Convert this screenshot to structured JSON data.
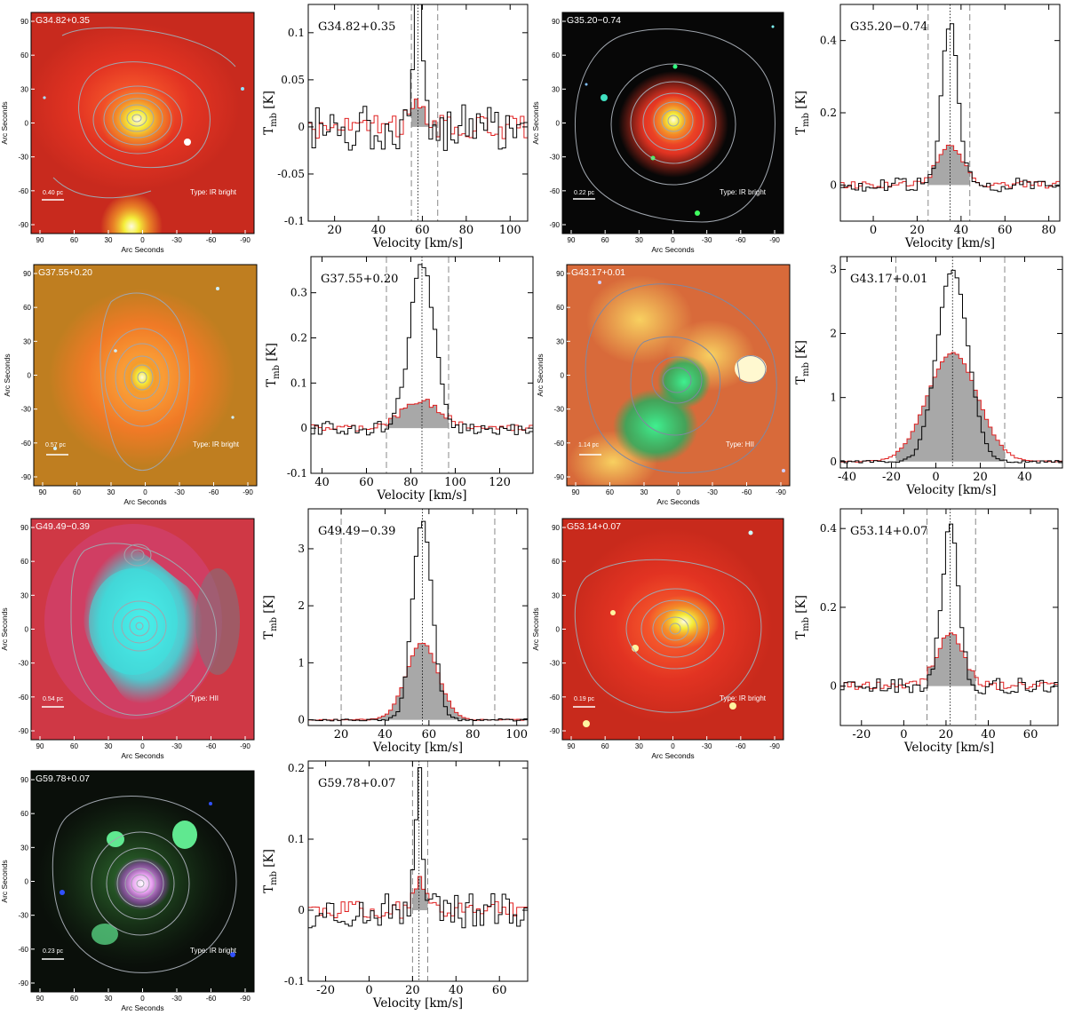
{
  "image_common": {
    "ylabel": "Arc Seconds",
    "xlabel": "Arc Seconds",
    "ticks": [
      "90",
      "60",
      "30",
      "0",
      "-30",
      "-60",
      "-90"
    ]
  },
  "spectrum_common": {
    "ylabel_main": "T",
    "ylabel_sub": "mb",
    "ylabel_unit": "[K]",
    "xlabel": "Velocity [km/s]"
  },
  "chart_data": [
    {
      "type": "image",
      "source": "G34.82+0.35",
      "scale_label": "0.40 pc",
      "type_label": "Type: IR bright",
      "colors": {
        "background": "#d63020",
        "core": "#f4ee3a",
        "contour": "#9aa0a8"
      }
    },
    {
      "type": "step-line",
      "source": "G34.82+0.35",
      "xlim": [
        8,
        108
      ],
      "ylim": [
        -0.1,
        0.13
      ],
      "xticks": [
        20,
        40,
        60,
        80,
        100
      ],
      "yticks": [
        -0.1,
        -0.05,
        0,
        0.05,
        0.1
      ],
      "center_velocity": 58,
      "window": [
        55,
        67
      ],
      "peak": 0.125,
      "width": 2.6,
      "red_peak": 0.022,
      "noise": 0.025,
      "colors": {
        "black_series": "#000000",
        "red_series": "#e02020",
        "fill": "#a8a8a8"
      }
    },
    {
      "type": "image",
      "source": "G35.20−0.74",
      "scale_label": "0.22 pc",
      "type_label": "Type: IR bright",
      "colors": {
        "background": "#070707",
        "core": "#f4ee3a",
        "contour": "#9aa0a8"
      }
    },
    {
      "type": "step-line",
      "source": "G35.20−0.74",
      "xlim": [
        -15,
        85
      ],
      "ylim": [
        -0.1,
        0.5
      ],
      "xticks": [
        0,
        20,
        40,
        60,
        80
      ],
      "yticks": [
        0,
        0.2,
        0.4
      ],
      "center_velocity": 35,
      "window": [
        25,
        44
      ],
      "peak": 0.45,
      "width": 3.6,
      "red_peak": 0.11,
      "noise": 0.02,
      "colors": {
        "black_series": "#000000",
        "red_series": "#e02020",
        "fill": "#a8a8a8"
      }
    },
    {
      "type": "image",
      "source": "G37.55+0.20",
      "scale_label": "0.57 pc",
      "type_label": "Type: IR bright",
      "colors": {
        "background": "#d96a20",
        "core": "#f4ee3a",
        "contour": "#9aa0a8"
      }
    },
    {
      "type": "step-line",
      "source": "G37.55+0.20",
      "xlim": [
        35,
        135
      ],
      "ylim": [
        -0.1,
        0.38
      ],
      "xticks": [
        40,
        60,
        80,
        100,
        120
      ],
      "yticks": [
        -0.1,
        0,
        0.1,
        0.2,
        0.3
      ],
      "center_velocity": 85,
      "window": [
        69,
        97
      ],
      "peak": 0.36,
      "width": 5.5,
      "red_peak": 0.06,
      "noise": 0.015,
      "colors": {
        "black_series": "#000000",
        "red_series": "#e02020",
        "fill": "#a8a8a8"
      }
    },
    {
      "type": "image",
      "source": "G43.17+0.01",
      "scale_label": "1.14 pc",
      "type_label": "Type: HII",
      "colors": {
        "background": "#dd7540",
        "core": "#28d070",
        "contour": "#9aa0a8"
      }
    },
    {
      "type": "step-line",
      "source": "G43.17+0.01",
      "xlim": [
        -43,
        57
      ],
      "ylim": [
        -0.1,
        3.2
      ],
      "xticks": [
        -40,
        -20,
        0,
        20,
        40
      ],
      "yticks": [
        0,
        1,
        2,
        3
      ],
      "center_velocity": 7.5,
      "window": [
        -18,
        31
      ],
      "peak": 3.0,
      "width": 7,
      "red_peak": 1.7,
      "noise": 0.02,
      "colors": {
        "black_series": "#000000",
        "red_series": "#e02020",
        "fill": "#a8a8a8"
      }
    },
    {
      "type": "image",
      "source": "G49.49−0.39",
      "scale_label": "0.54 pc",
      "type_label": "Type: HII",
      "colors": {
        "background": "#d23a48",
        "core": "#38ecea",
        "contour": "#9aa0a8"
      }
    },
    {
      "type": "step-line",
      "source": "G49.49−0.39",
      "xlim": [
        5,
        105
      ],
      "ylim": [
        -0.1,
        3.7
      ],
      "xticks": [
        20,
        40,
        60,
        80,
        100
      ],
      "yticks": [
        0,
        1,
        2,
        3
      ],
      "center_velocity": 57,
      "window": [
        20,
        90
      ],
      "peak": 3.5,
      "width": 4.5,
      "red_peak": 1.35,
      "noise": 0.02,
      "colors": {
        "black_series": "#000000",
        "red_series": "#e02020",
        "fill": "#a8a8a8"
      }
    },
    {
      "type": "image",
      "source": "G53.14+0.07",
      "scale_label": "0.19 pc",
      "type_label": "Type: IR bright",
      "colors": {
        "background": "#cf2a1a",
        "core": "#f4ee3a",
        "contour": "#9aa0a8"
      }
    },
    {
      "type": "step-line",
      "source": "G53.14+0.07",
      "xlim": [
        -30,
        73
      ],
      "ylim": [
        -0.1,
        0.45
      ],
      "xticks": [
        -20,
        0,
        20,
        40,
        60
      ],
      "yticks": [
        0,
        0.2,
        0.4
      ],
      "center_velocity": 22,
      "window": [
        11,
        34
      ],
      "peak": 0.4,
      "width": 4,
      "red_peak": 0.13,
      "noise": 0.02,
      "colors": {
        "black_series": "#000000",
        "red_series": "#e02020",
        "fill": "#a8a8a8"
      }
    },
    {
      "type": "image",
      "source": "G59.78+0.07",
      "scale_label": "0.23 pc",
      "type_label": "Type: IR bright",
      "colors": {
        "background": "#0d120b",
        "core": "#f0d0f0",
        "contour": "#9aa0a8"
      }
    },
    {
      "type": "step-line",
      "source": "G59.78+0.07",
      "xlim": [
        -28,
        73
      ],
      "ylim": [
        -0.1,
        0.21
      ],
      "xticks": [
        -20,
        0,
        20,
        40,
        60
      ],
      "yticks": [
        -0.1,
        0,
        0.1,
        0.2
      ],
      "center_velocity": 23,
      "window": [
        20,
        27
      ],
      "peak": 0.2,
      "width": 1.6,
      "red_peak": 0.04,
      "noise": 0.025,
      "colors": {
        "black_series": "#000000",
        "red_series": "#e02020",
        "fill": "#a8a8a8"
      }
    }
  ]
}
